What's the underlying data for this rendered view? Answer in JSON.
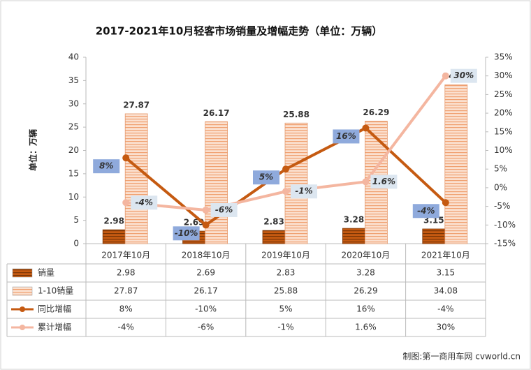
{
  "chart_data": {
    "type": "bar",
    "title": "2017-2021年10月轻客市场销量及增幅走势（单位：万辆）",
    "y_label": "单位：万辆",
    "source": "制图:第一商用车网 cvworld.cn",
    "categories": [
      "2017年10月",
      "2018年10月",
      "2019年10月",
      "2020年10月",
      "2021年10月"
    ],
    "ylim": [
      0,
      40
    ],
    "yticks": [
      0,
      5,
      10,
      15,
      20,
      25,
      30,
      35,
      40
    ],
    "y2lim": [
      -15,
      35
    ],
    "y2ticks": [
      {
        "value": -15,
        "label": "-15%"
      },
      {
        "value": -10,
        "label": "-10%"
      },
      {
        "value": -5,
        "label": "-5%"
      },
      {
        "value": 0,
        "label": "0%"
      },
      {
        "value": 5,
        "label": "5%"
      },
      {
        "value": 10,
        "label": "10%"
      },
      {
        "value": 15,
        "label": "15%"
      },
      {
        "value": 20,
        "label": "20%"
      },
      {
        "value": 25,
        "label": "25%"
      },
      {
        "value": 30,
        "label": "30%"
      },
      {
        "value": 35,
        "label": "35%"
      }
    ],
    "grid": false,
    "series": [
      {
        "name": "销量",
        "type": "bar",
        "color": "#c55a11",
        "values": [
          2.98,
          2.69,
          2.83,
          3.28,
          3.15
        ]
      },
      {
        "name": "1-10销量",
        "type": "bar",
        "color": "#f8cbad",
        "values": [
          27.87,
          26.17,
          25.88,
          26.29,
          34.08
        ]
      },
      {
        "name": "同比增幅",
        "type": "line",
        "axis": "y2",
        "color": "#c55a11",
        "values": [
          8,
          -10,
          5,
          16,
          -4
        ],
        "value_labels": [
          "8%",
          "-10%",
          "5%",
          "16%",
          "-4%"
        ]
      },
      {
        "name": "累计增幅",
        "type": "line",
        "axis": "y2",
        "color": "#f4b6a0",
        "values": [
          -4,
          -6,
          -1,
          1.6,
          30
        ],
        "value_labels": [
          "-4%",
          "-6%",
          "-1%",
          "1.6%",
          "30%"
        ]
      }
    ]
  }
}
